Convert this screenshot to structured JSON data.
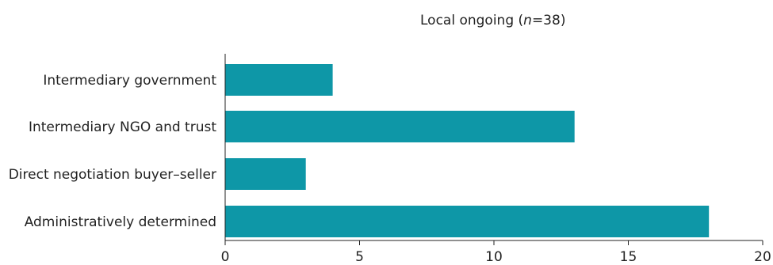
{
  "chart_data": {
    "type": "bar",
    "orientation": "horizontal",
    "title_prefix": "Local ongoing (",
    "title_n": "n",
    "title_suffix": "=38)",
    "categories": [
      "Intermediary government",
      "Intermediary NGO and trust",
      "Direct negotiation buyer–seller",
      "Administratively determined"
    ],
    "values": [
      4,
      13,
      3,
      18
    ],
    "xlim": [
      0,
      20
    ],
    "xticks": [
      0,
      5,
      10,
      15,
      20
    ],
    "xlabel": "",
    "ylabel": "",
    "grid": false,
    "bar_color": "#0e97a7"
  }
}
